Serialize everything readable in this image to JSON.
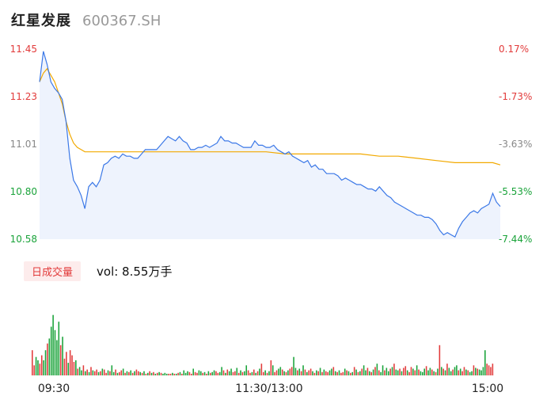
{
  "header": {
    "name": "红星发展",
    "code": "600367.SH"
  },
  "volume": {
    "tag": "日成交量",
    "label": "vol: 8.55万手"
  },
  "colors": {
    "up": "#e23b3b",
    "down": "#1aa33a",
    "neutral": "#888888",
    "price_line": "#3b78e7",
    "avg_line": "#f2a900",
    "area_fill": "#eef3fd"
  },
  "chart_data": [
    {
      "type": "line",
      "title": "",
      "x_ticks": [
        "09:30",
        "11:30/13:00",
        "15:00"
      ],
      "y_ticks_left": [
        "11.45",
        "11.23",
        "11.01",
        "10.80",
        "10.58"
      ],
      "y_ticks_right": [
        "0.17%",
        "-1.73%",
        "-3.63%",
        "-5.53%",
        "-7.44%"
      ],
      "ylim": [
        10.58,
        11.45
      ],
      "x_range_minutes": [
        0,
        240
      ],
      "series": [
        {
          "role": "price",
          "points": [
            [
              0,
              11.3
            ],
            [
              2,
              11.44
            ],
            [
              4,
              11.38
            ],
            [
              6,
              11.3
            ],
            [
              8,
              11.27
            ],
            [
              10,
              11.25
            ],
            [
              12,
              11.22
            ],
            [
              14,
              11.12
            ],
            [
              16,
              10.95
            ],
            [
              18,
              10.85
            ],
            [
              20,
              10.82
            ],
            [
              22,
              10.78
            ],
            [
              24,
              10.72
            ],
            [
              26,
              10.82
            ],
            [
              28,
              10.84
            ],
            [
              30,
              10.82
            ],
            [
              32,
              10.85
            ],
            [
              34,
              10.92
            ],
            [
              36,
              10.93
            ],
            [
              38,
              10.95
            ],
            [
              40,
              10.96
            ],
            [
              42,
              10.95
            ],
            [
              44,
              10.97
            ],
            [
              46,
              10.96
            ],
            [
              48,
              10.96
            ],
            [
              50,
              10.95
            ],
            [
              52,
              10.95
            ],
            [
              54,
              10.97
            ],
            [
              56,
              10.99
            ],
            [
              58,
              10.99
            ],
            [
              60,
              10.99
            ],
            [
              62,
              10.99
            ],
            [
              64,
              11.01
            ],
            [
              66,
              11.03
            ],
            [
              68,
              11.05
            ],
            [
              70,
              11.04
            ],
            [
              72,
              11.03
            ],
            [
              74,
              11.05
            ],
            [
              76,
              11.03
            ],
            [
              78,
              11.02
            ],
            [
              80,
              10.99
            ],
            [
              82,
              10.99
            ],
            [
              84,
              11.0
            ],
            [
              86,
              11.0
            ],
            [
              88,
              11.01
            ],
            [
              90,
              11.0
            ],
            [
              92,
              11.01
            ],
            [
              94,
              11.02
            ],
            [
              96,
              11.05
            ],
            [
              98,
              11.03
            ],
            [
              100,
              11.03
            ],
            [
              102,
              11.02
            ],
            [
              104,
              11.02
            ],
            [
              106,
              11.01
            ],
            [
              108,
              11.0
            ],
            [
              110,
              11.0
            ],
            [
              112,
              11.0
            ],
            [
              114,
              11.03
            ],
            [
              116,
              11.01
            ],
            [
              118,
              11.01
            ],
            [
              120,
              11.0
            ],
            [
              122,
              11.0
            ],
            [
              124,
              11.01
            ],
            [
              126,
              10.99
            ],
            [
              128,
              10.98
            ],
            [
              130,
              10.97
            ],
            [
              132,
              10.98
            ],
            [
              134,
              10.96
            ],
            [
              136,
              10.95
            ],
            [
              138,
              10.94
            ],
            [
              140,
              10.93
            ],
            [
              142,
              10.94
            ],
            [
              144,
              10.91
            ],
            [
              146,
              10.92
            ],
            [
              148,
              10.9
            ],
            [
              150,
              10.9
            ],
            [
              152,
              10.88
            ],
            [
              154,
              10.88
            ],
            [
              156,
              10.88
            ],
            [
              158,
              10.87
            ],
            [
              160,
              10.85
            ],
            [
              162,
              10.86
            ],
            [
              164,
              10.85
            ],
            [
              166,
              10.84
            ],
            [
              168,
              10.83
            ],
            [
              170,
              10.83
            ],
            [
              172,
              10.82
            ],
            [
              174,
              10.81
            ],
            [
              176,
              10.81
            ],
            [
              178,
              10.8
            ],
            [
              180,
              10.82
            ],
            [
              182,
              10.8
            ],
            [
              184,
              10.78
            ],
            [
              186,
              10.77
            ],
            [
              188,
              10.75
            ],
            [
              190,
              10.74
            ],
            [
              192,
              10.73
            ],
            [
              194,
              10.72
            ],
            [
              196,
              10.71
            ],
            [
              198,
              10.7
            ],
            [
              200,
              10.69
            ],
            [
              202,
              10.69
            ],
            [
              204,
              10.68
            ],
            [
              206,
              10.68
            ],
            [
              208,
              10.67
            ],
            [
              210,
              10.65
            ],
            [
              212,
              10.62
            ],
            [
              214,
              10.6
            ],
            [
              216,
              10.61
            ],
            [
              218,
              10.6
            ],
            [
              220,
              10.59
            ],
            [
              222,
              10.63
            ],
            [
              224,
              10.66
            ],
            [
              226,
              10.68
            ],
            [
              228,
              10.7
            ],
            [
              230,
              10.71
            ],
            [
              232,
              10.7
            ],
            [
              234,
              10.72
            ],
            [
              236,
              10.73
            ],
            [
              238,
              10.74
            ],
            [
              240,
              10.79
            ],
            [
              242,
              10.75
            ],
            [
              244,
              10.73
            ]
          ]
        },
        {
          "role": "average",
          "points": [
            [
              0,
              11.3
            ],
            [
              2,
              11.34
            ],
            [
              4,
              11.36
            ],
            [
              6,
              11.33
            ],
            [
              8,
              11.3
            ],
            [
              10,
              11.25
            ],
            [
              12,
              11.2
            ],
            [
              14,
              11.12
            ],
            [
              16,
              11.06
            ],
            [
              18,
              11.02
            ],
            [
              20,
              11.0
            ],
            [
              22,
              10.99
            ],
            [
              24,
              10.98
            ],
            [
              26,
              10.98
            ],
            [
              30,
              10.98
            ],
            [
              40,
              10.98
            ],
            [
              60,
              10.98
            ],
            [
              80,
              10.98
            ],
            [
              100,
              10.98
            ],
            [
              110,
              10.98
            ],
            [
              120,
              10.98
            ],
            [
              130,
              10.97
            ],
            [
              140,
              10.97
            ],
            [
              150,
              10.97
            ],
            [
              160,
              10.97
            ],
            [
              170,
              10.97
            ],
            [
              180,
              10.96
            ],
            [
              190,
              10.96
            ],
            [
              200,
              10.95
            ],
            [
              210,
              10.94
            ],
            [
              220,
              10.93
            ],
            [
              230,
              10.93
            ],
            [
              240,
              10.93
            ],
            [
              244,
              10.92
            ]
          ]
        }
      ]
    },
    {
      "type": "bar",
      "title": "",
      "ylabel": "",
      "ylim": [
        0,
        100
      ],
      "values": [
        30,
        12,
        22,
        18,
        14,
        24,
        18,
        30,
        38,
        44,
        58,
        72,
        54,
        42,
        64,
        36,
        46,
        20,
        28,
        15,
        30,
        24,
        16,
        18,
        8,
        10,
        6,
        12,
        5,
        7,
        4,
        10,
        6,
        5,
        7,
        4,
        5,
        8,
        7,
        3,
        6,
        5,
        12,
        4,
        7,
        3,
        4,
        6,
        8,
        3,
        5,
        4,
        6,
        3,
        5,
        7,
        5,
        4,
        3,
        5,
        2,
        3,
        5,
        3,
        4,
        2,
        3,
        4,
        3,
        2,
        3,
        2,
        2,
        2,
        3,
        2,
        2,
        3,
        4,
        2,
        6,
        3,
        5,
        4,
        2,
        8,
        4,
        3,
        6,
        5,
        3,
        4,
        2,
        5,
        3,
        4,
        6,
        5,
        3,
        4,
        10,
        6,
        3,
        7,
        5,
        8,
        4,
        5,
        9,
        3,
        6,
        4,
        5,
        12,
        6,
        3,
        4,
        7,
        3,
        5,
        8,
        14,
        4,
        6,
        3,
        5,
        18,
        12,
        4,
        6,
        8,
        10,
        7,
        5,
        4,
        6,
        8,
        10,
        22,
        9,
        6,
        8,
        5,
        12,
        7,
        4,
        6,
        8,
        5,
        3,
        6,
        5,
        9,
        4,
        7,
        5,
        4,
        6,
        8,
        10,
        5,
        4,
        6,
        3,
        4,
        8,
        6,
        5,
        3,
        4,
        10,
        7,
        4,
        5,
        8,
        12,
        6,
        9,
        5,
        4,
        7,
        10,
        14,
        6,
        4,
        12,
        6,
        9,
        5,
        8,
        10,
        14,
        7,
        6,
        8,
        5,
        9,
        11,
        6,
        4,
        10,
        8,
        6,
        12,
        7,
        5,
        4,
        8,
        11,
        6,
        9,
        7,
        5,
        4,
        8,
        36,
        10,
        8,
        6,
        14,
        9,
        5,
        7,
        10,
        12,
        6,
        8,
        5,
        10,
        7,
        6,
        4,
        5,
        12,
        9,
        8,
        7,
        6,
        10,
        30,
        14,
        12,
        10,
        14
      ],
      "colors": [
        "up",
        "up",
        "down",
        "down",
        "up",
        "up",
        "down",
        "down",
        "up",
        "down",
        "down",
        "down",
        "down",
        "down",
        "down",
        "up",
        "down",
        "up",
        "up",
        "down",
        "up",
        "up",
        "up",
        "down",
        "up",
        "down",
        "down",
        "up",
        "down",
        "up",
        "down",
        "up",
        "down",
        "up",
        "up",
        "down",
        "up",
        "down",
        "up",
        "up",
        "down",
        "up",
        "down",
        "down",
        "up",
        "down",
        "up",
        "up",
        "down",
        "up",
        "down",
        "up",
        "down",
        "up",
        "down",
        "up",
        "up",
        "down",
        "up",
        "down",
        "up",
        "down",
        "up",
        "down",
        "up",
        "down",
        "up",
        "down",
        "up",
        "down",
        "down",
        "down",
        "up",
        "up",
        "down",
        "up",
        "down",
        "up",
        "down",
        "up",
        "down",
        "down",
        "down",
        "up",
        "up",
        "down",
        "up",
        "up",
        "down",
        "down",
        "up",
        "down",
        "up",
        "down",
        "up",
        "down",
        "down",
        "up",
        "up",
        "down",
        "down",
        "up",
        "down",
        "up",
        "down",
        "down",
        "up",
        "up",
        "down",
        "up",
        "down",
        "up",
        "down",
        "down",
        "up",
        "up",
        "down",
        "up",
        "down",
        "up",
        "down",
        "up",
        "up",
        "down",
        "up",
        "down",
        "up",
        "down",
        "up",
        "up",
        "down",
        "down",
        "up",
        "down",
        "up",
        "down",
        "up",
        "up",
        "down",
        "down",
        "up",
        "down",
        "up",
        "down",
        "up",
        "down",
        "up",
        "up",
        "down",
        "up",
        "down",
        "up",
        "down",
        "up",
        "down",
        "up",
        "up",
        "down",
        "down",
        "up",
        "down",
        "up",
        "down",
        "up",
        "up",
        "down",
        "up",
        "down",
        "up",
        "down",
        "up",
        "down",
        "up",
        "down",
        "up",
        "down",
        "down",
        "up",
        "down",
        "up",
        "down",
        "up",
        "down",
        "up",
        "down",
        "down",
        "up",
        "down",
        "down",
        "up",
        "down",
        "up",
        "down",
        "down",
        "up",
        "down",
        "up",
        "up",
        "down",
        "up",
        "up",
        "down",
        "up",
        "down",
        "up",
        "down",
        "down",
        "down",
        "up",
        "down",
        "down",
        "up",
        "down",
        "up",
        "down",
        "up",
        "down",
        "up",
        "down",
        "up",
        "down",
        "down",
        "up",
        "down",
        "down",
        "up",
        "down",
        "up",
        "up",
        "down",
        "up",
        "down",
        "down",
        "up",
        "down",
        "up",
        "down",
        "down",
        "down",
        "down",
        "up"
      ]
    }
  ]
}
